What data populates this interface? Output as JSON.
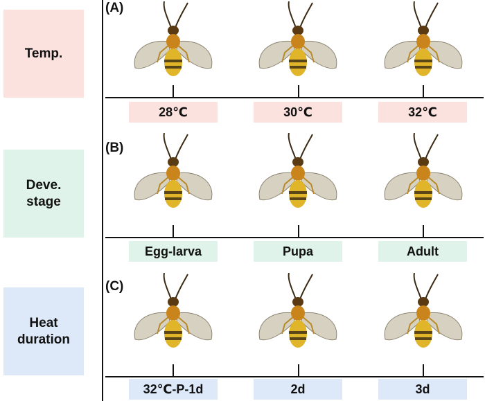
{
  "colors": {
    "temp": "#fbe2df",
    "stage": "#dff3ea",
    "heat": "#dde9f8",
    "line": "#111111"
  },
  "rows": [
    {
      "panel_label": "(A)",
      "side_label": "Temp.",
      "conditions": [
        "28℃",
        "30℃",
        "32℃"
      ]
    },
    {
      "panel_label": "(B)",
      "side_label": "Deve.\nstage",
      "conditions": [
        "Egg-larva",
        "Pupa",
        "Adult"
      ]
    },
    {
      "panel_label": "(C)",
      "side_label": "Heat\nduration",
      "conditions": [
        "32℃-P-1d",
        "2d",
        "3d"
      ]
    }
  ],
  "wasp_icons": [
    [
      "wasp-icon",
      "wasp-icon",
      "wasp-icon"
    ],
    [
      "wasp-icon",
      "wasp-icon",
      "wasp-icon"
    ],
    [
      "wasp-icon",
      "wasp-icon",
      "wasp-icon"
    ]
  ]
}
